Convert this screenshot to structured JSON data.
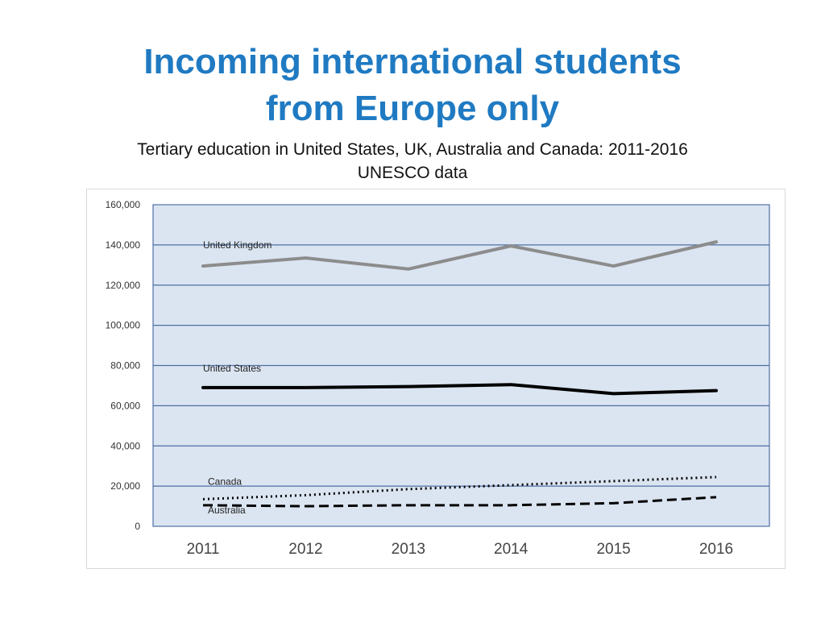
{
  "title_lines": [
    "Incoming international students",
    "from Europe only"
  ],
  "subtitle_lines": [
    "Tertiary education in United States, UK, Australia and Canada: 2011-2016",
    "UNESCO data"
  ],
  "chart_data": {
    "type": "line",
    "x": [
      "2011",
      "2012",
      "2013",
      "2014",
      "2015",
      "2016"
    ],
    "y_ticks": [
      "0",
      "20,000",
      "40,000",
      "60,000",
      "80,000",
      "100,000",
      "120,000",
      "140,000",
      "160,000"
    ],
    "ylim": [
      0,
      160000
    ],
    "grid": true,
    "series": [
      {
        "name": "United Kingdom",
        "values": [
          129500,
          133500,
          128000,
          139500,
          129500,
          141500
        ],
        "color": "#8c8c8c",
        "style": "solid"
      },
      {
        "name": "United States",
        "values": [
          69000,
          69000,
          69500,
          70500,
          66000,
          67500
        ],
        "color": "#000000",
        "style": "solid"
      },
      {
        "name": "Canada",
        "values": [
          13500,
          15500,
          18500,
          20500,
          22500,
          24500
        ],
        "color": "#000000",
        "style": "dotted"
      },
      {
        "name": "Australia",
        "values": [
          10500,
          10000,
          10500,
          10500,
          11500,
          14500
        ],
        "color": "#000000",
        "style": "dashed"
      }
    ],
    "plot_background": "#dbe5f1",
    "grid_color": "#4f6fa3"
  }
}
